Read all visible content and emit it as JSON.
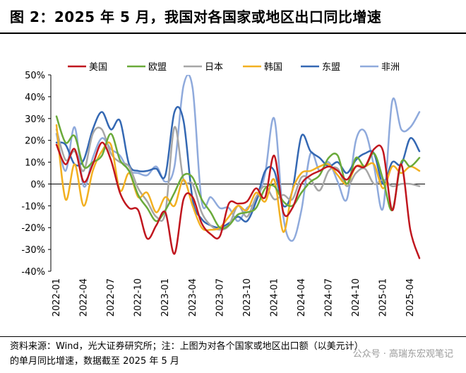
{
  "header": {
    "title": "图 2：2025 年 5 月，我国对各国家或地区出口同比增速"
  },
  "footer": {
    "note_line1": "资料来源：Wind，光大证券研究所；注：上图为对各个国家或地区出口额（以美元计）",
    "note_line2": "的单月同比增速，数据截至 2025 年 5 月",
    "watermark": "公众号 · 高瑞东宏观笔记"
  },
  "chart_data": {
    "type": "line",
    "title": "",
    "xlabel": "",
    "ylabel": "",
    "ylim": [
      -40,
      50
    ],
    "yticks": [
      -40,
      -30,
      -20,
      -10,
      0,
      10,
      20,
      30,
      40,
      50
    ],
    "ytick_labels": [
      "-40%",
      "-30%",
      "-20%",
      "-10%",
      "0%",
      "10%",
      "20%",
      "30%",
      "40%",
      "50%"
    ],
    "x": [
      "2022-01",
      "2022-02",
      "2022-03",
      "2022-04",
      "2022-05",
      "2022-06",
      "2022-07",
      "2022-08",
      "2022-09",
      "2022-10",
      "2022-11",
      "2022-12",
      "2023-01",
      "2023-02",
      "2023-03",
      "2023-04",
      "2023-05",
      "2023-06",
      "2023-07",
      "2023-08",
      "2023-09",
      "2023-10",
      "2023-11",
      "2023-12",
      "2024-01",
      "2024-02",
      "2024-03",
      "2024-04",
      "2024-05",
      "2024-06",
      "2024-07",
      "2024-08",
      "2024-09",
      "2024-10",
      "2024-11",
      "2024-12",
      "2025-01",
      "2025-02",
      "2025-03",
      "2025-04",
      "2025-05"
    ],
    "xtick_labels": [
      "2022-01",
      "2022-04",
      "2022-07",
      "2022-10",
      "2023-01",
      "2023-04",
      "2023-07",
      "2023-10",
      "2024-01",
      "2024-04",
      "2024-07",
      "2024-10",
      "2025-01",
      "2025-04"
    ],
    "legend_position": "top",
    "series": [
      {
        "name": "美国",
        "color": "#c0161e",
        "values": [
          18,
          9,
          16,
          1,
          9,
          19,
          11,
          -4,
          -11,
          -12,
          -25,
          -19,
          -13,
          -32,
          -7,
          -6,
          -18,
          -23,
          -24,
          -9,
          -9,
          -8,
          -2,
          -6,
          13,
          -13,
          -11,
          0,
          4,
          6,
          8,
          6,
          2,
          8,
          8,
          16,
          15,
          -12,
          9,
          -21,
          -34
        ]
      },
      {
        "name": "欧盟",
        "color": "#6aaa3a",
        "values": [
          31,
          19,
          22,
          8,
          10,
          13,
          23,
          11,
          6,
          -5,
          -11,
          -17,
          -12,
          -4,
          4,
          3,
          -7,
          -13,
          -20,
          -19,
          -14,
          -13,
          -11,
          -2,
          -1,
          -8,
          -10,
          -4,
          1,
          4,
          12,
          13,
          0,
          12,
          8,
          14,
          2,
          -12,
          10,
          8,
          12
        ]
      },
      {
        "name": "日本",
        "color": "#a6a6a6",
        "values": [
          25,
          11,
          15,
          6,
          23,
          25,
          14,
          10,
          8,
          -2,
          -8,
          -15,
          -13,
          26,
          2,
          0,
          -13,
          -19,
          -21,
          -19,
          -10,
          -15,
          -6,
          -1,
          -7,
          -5,
          -7,
          3,
          2,
          -3,
          6,
          7,
          -1,
          5,
          7,
          0,
          2,
          -1,
          0,
          0,
          -1
        ]
      },
      {
        "name": "韩国",
        "color": "#f2b021",
        "values": [
          27,
          -7,
          9,
          -10,
          6,
          15,
          18,
          -3,
          5,
          -6,
          -4,
          -13,
          -6,
          -10,
          2,
          -10,
          -20,
          -21,
          -20,
          -15,
          -10,
          -12,
          -4,
          -8,
          2,
          -22,
          -3,
          5,
          6,
          8,
          9,
          4,
          0,
          8,
          8,
          9,
          -2,
          8,
          5,
          8,
          6
        ]
      },
      {
        "name": "东盟",
        "color": "#3468b3",
        "values": [
          19,
          18,
          9,
          11,
          25,
          33,
          25,
          29,
          9,
          6,
          6,
          7,
          4,
          33,
          29,
          -7,
          -16,
          -19,
          -20,
          -18,
          -15,
          -17,
          -8,
          6,
          6,
          -10,
          -3,
          22,
          15,
          12,
          8,
          10,
          5,
          11,
          14,
          14,
          0,
          10,
          9,
          21,
          15
        ]
      },
      {
        "name": "非洲",
        "color": "#8faadc",
        "values": [
          23,
          6,
          26,
          -1,
          12,
          21,
          16,
          13,
          6,
          5,
          4,
          8,
          1,
          8,
          45,
          44,
          -8,
          -6,
          -11,
          -11,
          -17,
          -11,
          -8,
          5,
          30,
          -15,
          -26,
          -12,
          14,
          6,
          10,
          1,
          -7,
          20,
          24,
          8,
          -11,
          38,
          25,
          26,
          33
        ]
      }
    ]
  }
}
